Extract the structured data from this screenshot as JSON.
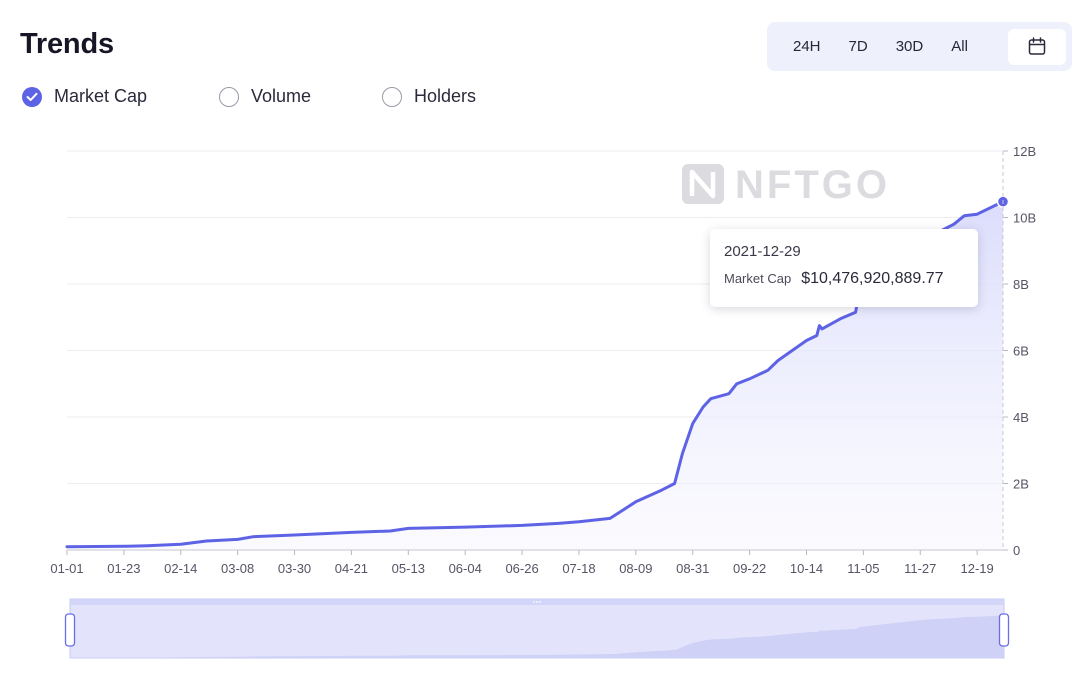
{
  "header": {
    "title": "Trends"
  },
  "range_buttons": [
    {
      "label": "24H"
    },
    {
      "label": "7D"
    },
    {
      "label": "30D"
    },
    {
      "label": "All"
    }
  ],
  "metrics": [
    {
      "label": "Market Cap",
      "checked": true
    },
    {
      "label": "Volume",
      "checked": false
    },
    {
      "label": "Holders",
      "checked": false
    }
  ],
  "watermark": "NFTGO",
  "tooltip": {
    "date": "2021-12-29",
    "label": "Market Cap",
    "value": "$10,476,920,889.77"
  },
  "colors": {
    "line": "#5e63e6",
    "fill": "#e8e9fc",
    "accent": "#5e63e6",
    "grid": "#ececf2"
  },
  "chart_data": {
    "type": "area",
    "title": "",
    "xlabel": "",
    "ylabel": "",
    "y_axis_position": "right",
    "ylim": [
      0,
      12000000000
    ],
    "y_ticks": [
      {
        "value": 0,
        "label": "0"
      },
      {
        "value": 2000000000,
        "label": "2B"
      },
      {
        "value": 4000000000,
        "label": "4B"
      },
      {
        "value": 6000000000,
        "label": "6B"
      },
      {
        "value": 8000000000,
        "label": "8B"
      },
      {
        "value": 10000000000,
        "label": "10B"
      },
      {
        "value": 12000000000,
        "label": "12B"
      }
    ],
    "x_tick_labels": [
      "01-01",
      "01-23",
      "02-14",
      "03-08",
      "03-30",
      "04-21",
      "05-13",
      "06-04",
      "06-26",
      "07-18",
      "08-09",
      "08-31",
      "09-22",
      "10-14",
      "11-05",
      "11-27",
      "12-19"
    ],
    "grid": true,
    "series": [
      {
        "name": "Market Cap",
        "points": [
          [
            "2021-01-01",
            100000000
          ],
          [
            "2021-01-23",
            110000000
          ],
          [
            "2021-02-01",
            130000000
          ],
          [
            "2021-02-14",
            170000000
          ],
          [
            "2021-02-24",
            270000000
          ],
          [
            "2021-03-08",
            320000000
          ],
          [
            "2021-03-14",
            400000000
          ],
          [
            "2021-03-30",
            450000000
          ],
          [
            "2021-04-21",
            530000000
          ],
          [
            "2021-05-06",
            570000000
          ],
          [
            "2021-05-13",
            650000000
          ],
          [
            "2021-06-04",
            690000000
          ],
          [
            "2021-06-26",
            740000000
          ],
          [
            "2021-07-10",
            800000000
          ],
          [
            "2021-07-18",
            850000000
          ],
          [
            "2021-07-30",
            950000000
          ],
          [
            "2021-08-04",
            1200000000
          ],
          [
            "2021-08-09",
            1450000000
          ],
          [
            "2021-08-19",
            1800000000
          ],
          [
            "2021-08-24",
            2000000000
          ],
          [
            "2021-08-27",
            2900000000
          ],
          [
            "2021-08-31",
            3800000000
          ],
          [
            "2021-09-04",
            4300000000
          ],
          [
            "2021-09-07",
            4550000000
          ],
          [
            "2021-09-14",
            4700000000
          ],
          [
            "2021-09-17",
            5000000000
          ],
          [
            "2021-09-22",
            5150000000
          ],
          [
            "2021-09-29",
            5400000000
          ],
          [
            "2021-10-03",
            5700000000
          ],
          [
            "2021-10-14",
            6300000000
          ],
          [
            "2021-10-18",
            6450000000
          ],
          [
            "2021-10-19",
            6750000000
          ],
          [
            "2021-10-20",
            6650000000
          ],
          [
            "2021-10-27",
            6950000000
          ],
          [
            "2021-11-02",
            7150000000
          ],
          [
            "2021-11-03",
            7600000000
          ],
          [
            "2021-11-27",
            9300000000
          ],
          [
            "2021-12-01",
            9500000000
          ],
          [
            "2021-12-05",
            9600000000
          ],
          [
            "2021-12-10",
            9800000000
          ],
          [
            "2021-12-14",
            10050000000
          ],
          [
            "2021-12-19",
            10100000000
          ],
          [
            "2021-12-29",
            10476920889.77
          ]
        ]
      }
    ]
  }
}
